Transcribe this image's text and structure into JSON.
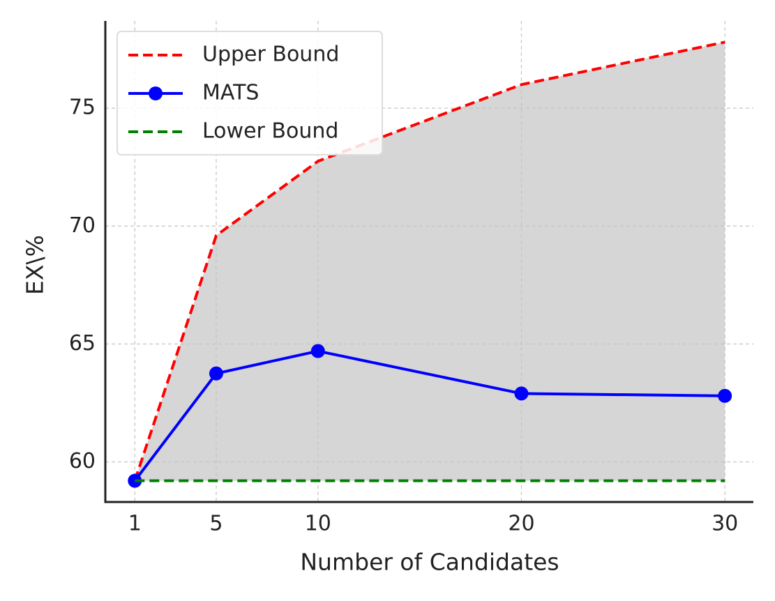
{
  "chart_data": {
    "type": "line",
    "x_label": "Number of Candidates",
    "y_label": "EX\\%",
    "x": [
      1,
      5,
      10,
      20,
      30
    ],
    "series": [
      {
        "name": "Upper Bound",
        "color": "#ff0000",
        "style": "dashed",
        "values": [
          59.2,
          69.6,
          72.75,
          76.0,
          77.8
        ]
      },
      {
        "name": "MATS",
        "color": "#0000ff",
        "style": "solid-marker",
        "values": [
          59.2,
          63.75,
          64.7,
          62.9,
          62.8
        ]
      },
      {
        "name": "Lower Bound",
        "color": "#008000",
        "style": "dashed",
        "values": [
          59.2,
          59.2,
          59.2,
          59.2,
          59.2
        ]
      }
    ],
    "shade_color": "#d6d6d6",
    "xlim": [
      -0.45,
      31.4
    ],
    "ylim": [
      58.3,
      78.7
    ],
    "xticks": [
      1,
      5,
      10,
      20,
      30
    ],
    "yticks": [
      60,
      65,
      70,
      75
    ],
    "grid": true,
    "legend": "upper left"
  }
}
